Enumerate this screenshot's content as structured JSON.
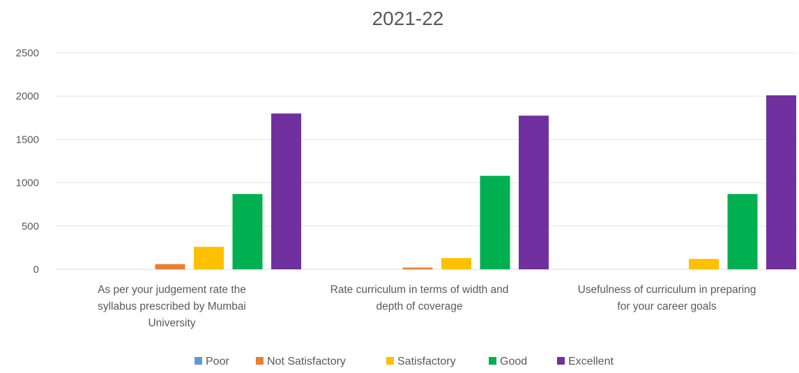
{
  "chart_data": {
    "type": "bar",
    "title": "2021-22",
    "xlabel": "",
    "ylabel": "",
    "ylim": [
      0,
      2500
    ],
    "yticks": [
      0,
      500,
      1000,
      1500,
      2000,
      2500
    ],
    "grid": true,
    "legend_position": "bottom",
    "categories": [
      [
        "As per your judgement rate the",
        "syllabus prescribed by Mumbai",
        "University"
      ],
      [
        "Rate curriculum in terms of width and",
        "depth of coverage"
      ],
      [
        "Usefulness of curriculum in preparing",
        "for your career goals"
      ]
    ],
    "series": [
      {
        "name": "Poor",
        "color": "#5B9BD5",
        "values": [
          0,
          0,
          0
        ]
      },
      {
        "name": "Not Satisfactory",
        "color": "#ED7D31",
        "values": [
          60,
          20,
          0
        ]
      },
      {
        "name": "Satisfactory",
        "color": "#FFC000",
        "values": [
          260,
          130,
          120
        ]
      },
      {
        "name": "Good",
        "color": "#00B050",
        "values": [
          870,
          1080,
          870
        ]
      },
      {
        "name": "Excellent",
        "color": "#7030A0",
        "values": [
          1800,
          1775,
          2010
        ]
      }
    ]
  }
}
